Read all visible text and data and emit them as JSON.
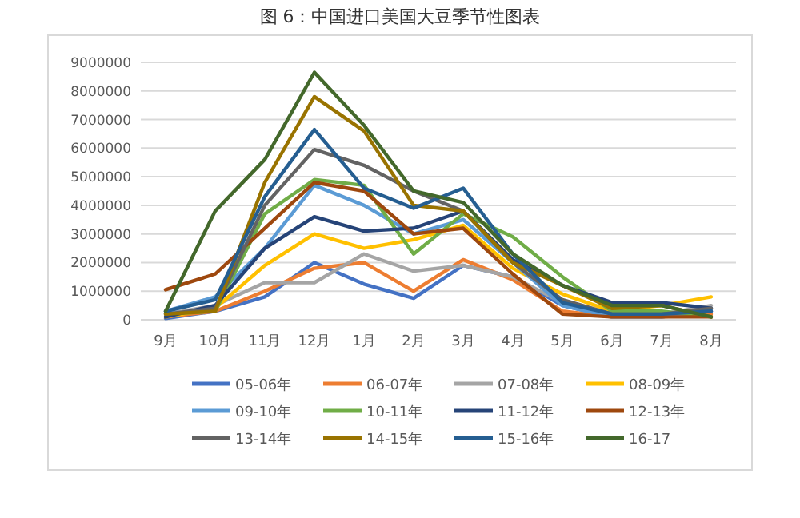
{
  "chart_data": {
    "type": "line",
    "title": "图 6：中国进口美国大豆季节性图表",
    "categories": [
      "9月",
      "10月",
      "11月",
      "12月",
      "1月",
      "2月",
      "3月",
      "4月",
      "5月",
      "6月",
      "7月",
      "8月"
    ],
    "ylim": [
      0,
      9000000
    ],
    "yticks": [
      0,
      1000000,
      2000000,
      3000000,
      4000000,
      5000000,
      6000000,
      7000000,
      8000000,
      9000000
    ],
    "grid": "y",
    "legend": "bottom",
    "marker": "none",
    "line_style": "solid",
    "series": [
      {
        "name": "05-06年",
        "color": "#4472c4",
        "values": [
          50000,
          300000,
          800000,
          2000000,
          1250000,
          750000,
          1900000,
          1500000,
          500000,
          100000,
          100000,
          300000
        ]
      },
      {
        "name": "06-07年",
        "color": "#ed7d31",
        "values": [
          100000,
          300000,
          1000000,
          1800000,
          2000000,
          1000000,
          2100000,
          1400000,
          300000,
          100000,
          100000,
          200000
        ]
      },
      {
        "name": "07-08年",
        "color": "#a5a5a5",
        "values": [
          200000,
          500000,
          1300000,
          1300000,
          2300000,
          1700000,
          1900000,
          1500000,
          600000,
          null,
          200000,
          500000
        ]
      },
      {
        "name": "08-09年",
        "color": "#ffc000",
        "values": [
          100000,
          400000,
          1900000,
          3000000,
          2500000,
          2800000,
          3300000,
          1800000,
          900000,
          300000,
          500000,
          800000
        ]
      },
      {
        "name": "09-10年",
        "color": "#5b9bd5",
        "values": [
          300000,
          800000,
          2500000,
          4700000,
          4000000,
          3000000,
          3500000,
          2000000,
          500000,
          100000,
          100000,
          300000
        ]
      },
      {
        "name": "10-11年",
        "color": "#70ad47",
        "values": [
          200000,
          300000,
          3700000,
          4900000,
          4700000,
          2300000,
          3700000,
          2900000,
          1500000,
          300000,
          300000,
          100000
        ]
      },
      {
        "name": "11-12年",
        "color": "#264478",
        "values": [
          100000,
          500000,
          2500000,
          3600000,
          3100000,
          3200000,
          3800000,
          2100000,
          1200000,
          600000,
          600000,
          400000
        ]
      },
      {
        "name": "12-13年",
        "color": "#9e480e",
        "values": [
          1050000,
          1600000,
          3200000,
          4800000,
          4500000,
          3000000,
          3200000,
          1600000,
          200000,
          100000,
          100000,
          100000
        ]
      },
      {
        "name": "13-14年",
        "color": "#636363",
        "values": [
          200000,
          400000,
          4000000,
          5950000,
          5400000,
          4500000,
          3800000,
          2000000,
          700000,
          200000,
          200000,
          400000
        ]
      },
      {
        "name": "14-15年",
        "color": "#997300",
        "values": [
          200000,
          300000,
          4800000,
          7800000,
          6600000,
          4000000,
          3800000,
          2000000,
          1200000,
          400000,
          500000,
          100000
        ]
      },
      {
        "name": "15-16年",
        "color": "#255e91",
        "values": [
          300000,
          700000,
          4300000,
          6650000,
          4600000,
          3900000,
          4600000,
          2300000,
          600000,
          200000,
          200000,
          300000
        ]
      },
      {
        "name": "16-17",
        "color": "#43682b",
        "values": [
          300000,
          3800000,
          5600000,
          8650000,
          6800000,
          4500000,
          4100000,
          2300000,
          1200000,
          500000,
          500000,
          100000
        ]
      }
    ]
  }
}
